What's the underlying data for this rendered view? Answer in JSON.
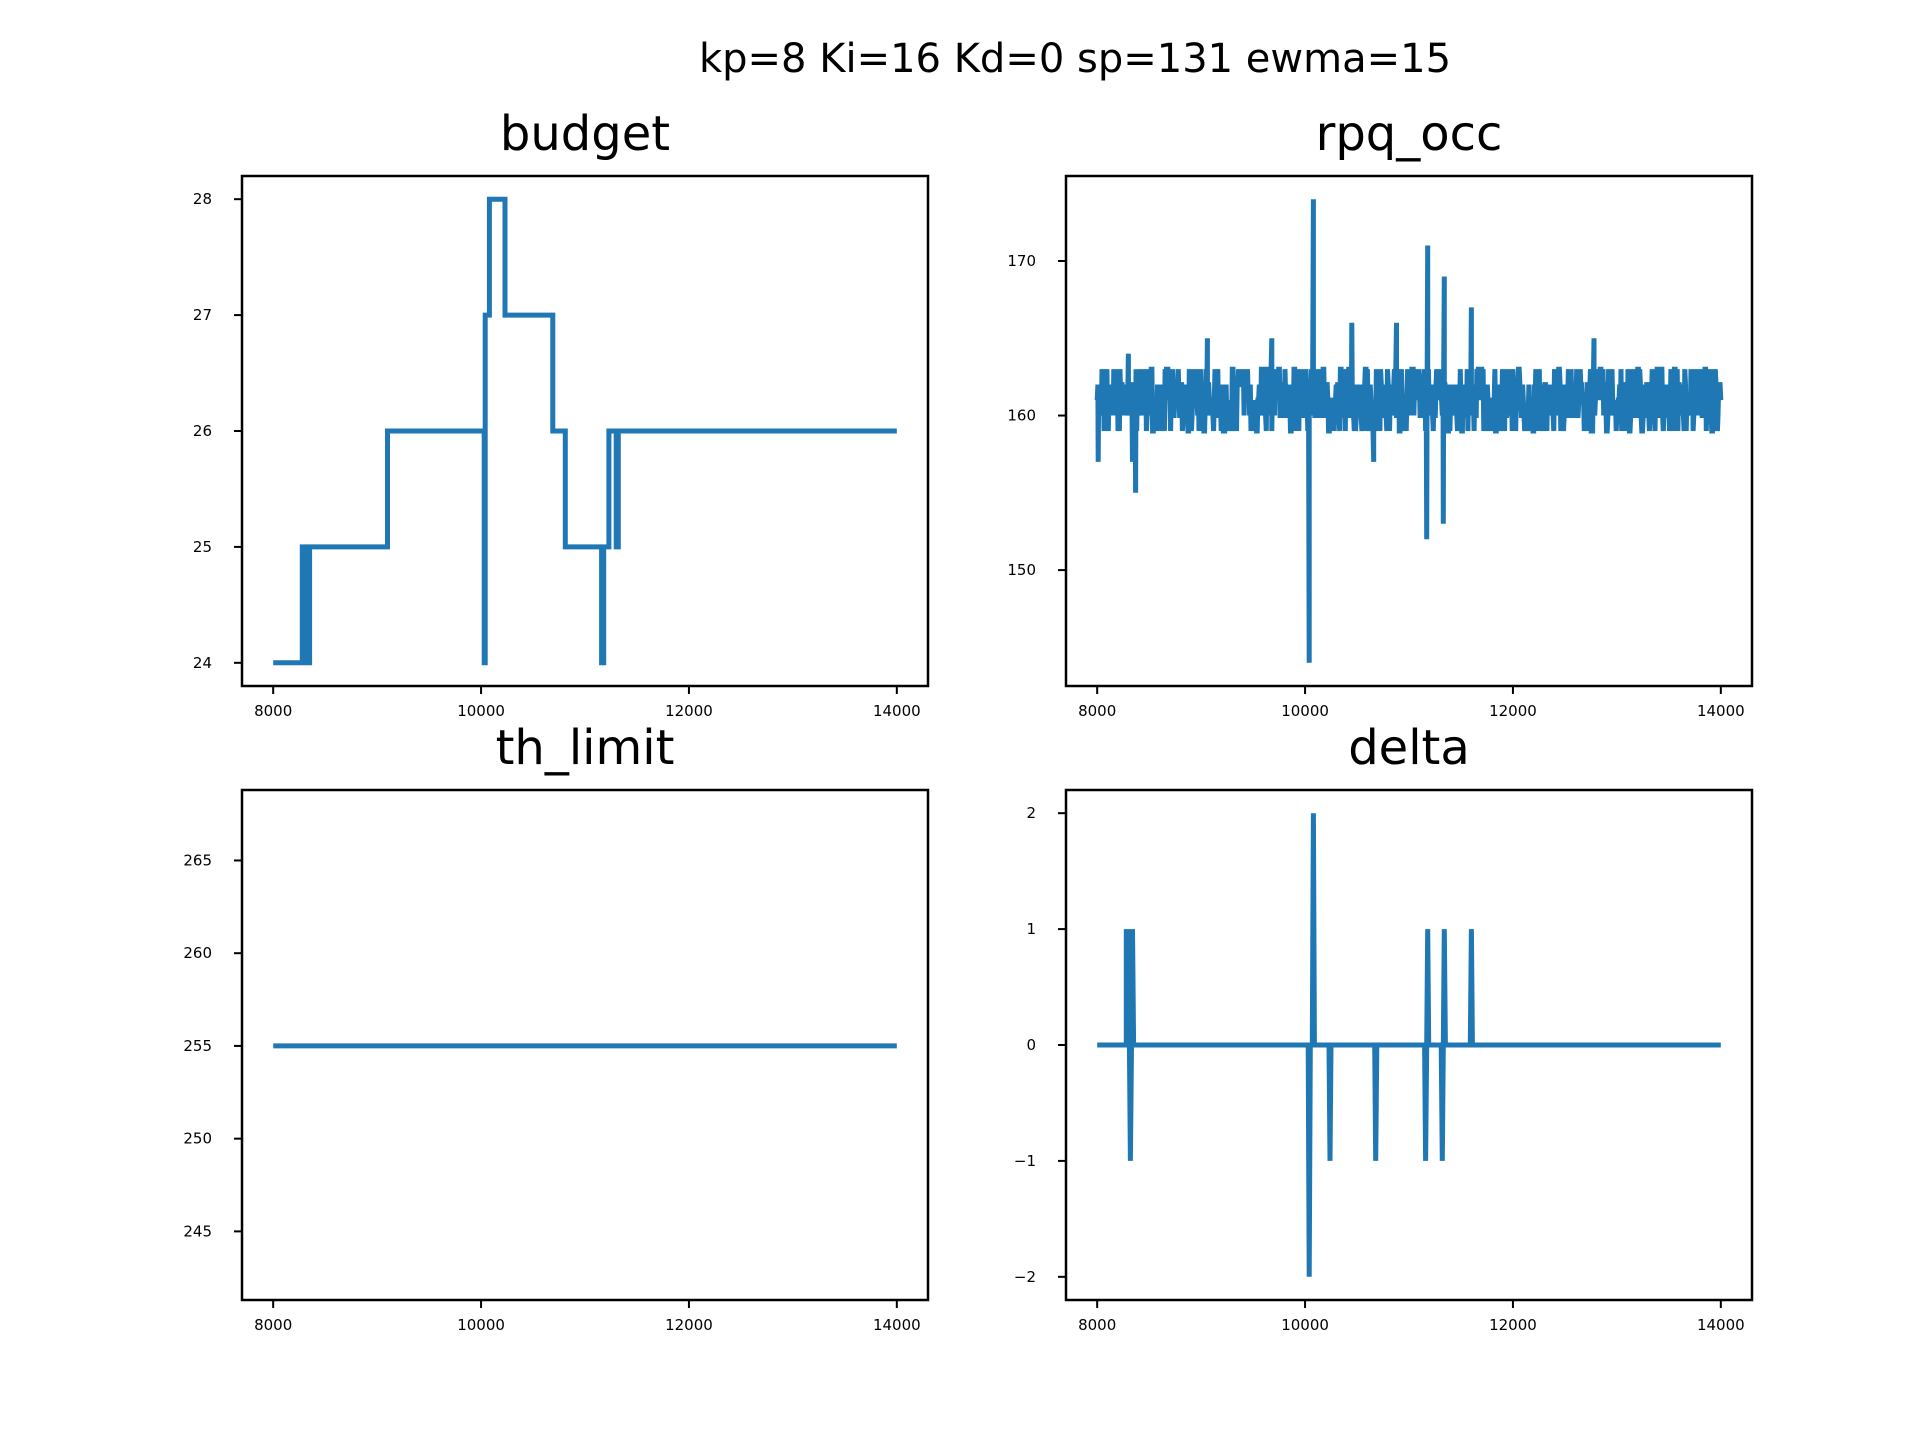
{
  "figure": {
    "suptitle": "kp=8 Ki=16 Kd=0 sp=131 ewma=15",
    "line_color": "#1f77b4"
  },
  "chart_data": [
    {
      "type": "line",
      "title": "budget",
      "xlabel": "",
      "ylabel": "",
      "xlim": [
        7700,
        14300
      ],
      "ylim": [
        23.8,
        28.2
      ],
      "xticks": [
        8000,
        10000,
        12000,
        14000
      ],
      "xtick_labels": [
        "8000",
        "10000",
        "12000",
        "14000"
      ],
      "yticks": [
        24,
        25,
        26,
        27,
        28
      ],
      "ytick_labels": [
        "24",
        "25",
        "26",
        "27",
        "28"
      ],
      "grid": false,
      "step": true,
      "series": [
        {
          "x": [
            8000,
            8280,
            8280,
            8300,
            8300,
            8320,
            8320,
            8340,
            8340,
            8350,
            8350,
            9100,
            9100,
            10030,
            10030,
            10040,
            10040,
            10080,
            10080,
            10120,
            10120,
            10230,
            10230,
            10690,
            10690,
            10810,
            10810,
            11160,
            11160,
            11180,
            11180,
            11230,
            11230,
            11300,
            11300,
            11320,
            11320,
            14000
          ],
          "y": [
            24,
            24,
            25,
            25,
            24,
            24,
            25,
            25,
            24,
            24,
            25,
            25,
            26,
            26,
            24,
            24,
            27,
            27,
            28,
            28,
            28,
            28,
            27,
            27,
            26,
            26,
            25,
            25,
            24,
            24,
            25,
            25,
            26,
            26,
            25,
            25,
            26,
            26
          ]
        }
      ]
    },
    {
      "type": "line",
      "title": "rpq_occ",
      "xlabel": "",
      "ylabel": "",
      "xlim": [
        7700,
        14300
      ],
      "ylim": [
        142.5,
        175.5
      ],
      "xticks": [
        8000,
        10000,
        12000,
        14000
      ],
      "xtick_labels": [
        "8000",
        "10000",
        "12000",
        "14000"
      ],
      "yticks": [
        150,
        160,
        170
      ],
      "ytick_labels": [
        "150",
        "160",
        "170"
      ],
      "grid": false,
      "series": [
        {
          "noise": true,
          "x_range": [
            8000,
            14000
          ],
          "baseline": 161,
          "band": [
            159,
            163
          ],
          "outliers": [
            {
              "x": 8010,
              "y": 157
            },
            {
              "x": 8300,
              "y": 164
            },
            {
              "x": 8340,
              "y": 157
            },
            {
              "x": 8370,
              "y": 155
            },
            {
              "x": 9060,
              "y": 165
            },
            {
              "x": 9680,
              "y": 165
            },
            {
              "x": 10040,
              "y": 144
            },
            {
              "x": 10080,
              "y": 174
            },
            {
              "x": 10450,
              "y": 166
            },
            {
              "x": 10660,
              "y": 157
            },
            {
              "x": 10880,
              "y": 166
            },
            {
              "x": 11170,
              "y": 152
            },
            {
              "x": 11180,
              "y": 171
            },
            {
              "x": 11330,
              "y": 153
            },
            {
              "x": 11340,
              "y": 169
            },
            {
              "x": 11600,
              "y": 167
            },
            {
              "x": 12780,
              "y": 165
            }
          ]
        }
      ]
    },
    {
      "type": "line",
      "title": "th_limit",
      "xlabel": "",
      "ylabel": "",
      "xlim": [
        7700,
        14300
      ],
      "ylim": [
        241.3,
        268.8
      ],
      "xticks": [
        8000,
        10000,
        12000,
        14000
      ],
      "xtick_labels": [
        "8000",
        "10000",
        "12000",
        "14000"
      ],
      "yticks": [
        245,
        250,
        255,
        260,
        265
      ],
      "ytick_labels": [
        "245",
        "250",
        "255",
        "260",
        "265"
      ],
      "grid": false,
      "series": [
        {
          "x": [
            8000,
            14000
          ],
          "y": [
            255,
            255
          ]
        }
      ]
    },
    {
      "type": "line",
      "title": "delta",
      "xlabel": "",
      "ylabel": "",
      "xlim": [
        7700,
        14300
      ],
      "ylim": [
        -2.2,
        2.2
      ],
      "xticks": [
        8000,
        10000,
        12000,
        14000
      ],
      "xtick_labels": [
        "8000",
        "10000",
        "12000",
        "14000"
      ],
      "yticks": [
        -2,
        -1,
        0,
        1,
        2
      ],
      "ytick_labels": [
        "−2",
        "−1",
        "0",
        "1",
        "2"
      ],
      "grid": false,
      "series": [
        {
          "x": [
            8000,
            8280,
            8280,
            8290,
            8300,
            8310,
            8320,
            8330,
            8340,
            8350,
            8360,
            10030,
            10040,
            10050,
            10070,
            10080,
            10090,
            10230,
            10240,
            10250,
            10670,
            10680,
            10690,
            11150,
            11160,
            11170,
            11180,
            11190,
            11310,
            11320,
            11330,
            11340,
            11350,
            11590,
            11600,
            11610,
            14000
          ],
          "y": [
            0,
            0,
            1,
            0,
            1,
            0,
            -1,
            0,
            1,
            0,
            0,
            0,
            -2,
            0,
            0,
            2,
            0,
            0,
            -1,
            0,
            0,
            -1,
            0,
            0,
            -1,
            0,
            1,
            0,
            0,
            -1,
            0,
            1,
            0,
            0,
            1,
            0,
            0
          ]
        }
      ]
    }
  ]
}
